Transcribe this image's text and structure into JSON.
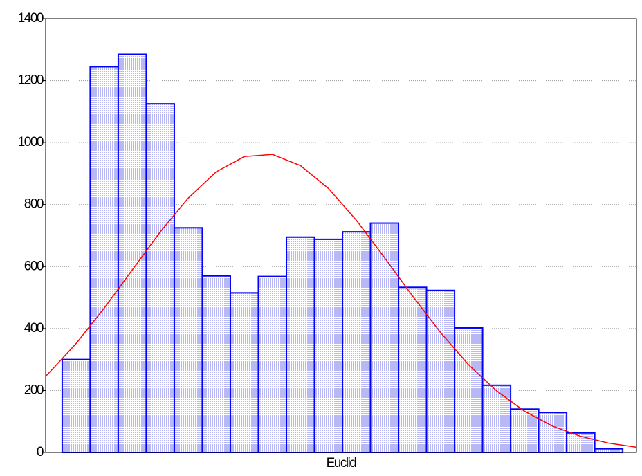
{
  "chart_data": {
    "type": "histogram",
    "x_label": "Euclid",
    "bins": [
      0,
      1,
      2,
      3,
      4,
      5,
      6,
      7,
      8,
      9,
      10,
      11,
      12,
      13,
      14,
      15,
      16,
      17,
      18,
      19,
      20
    ],
    "values": [
      300,
      1245,
      1285,
      1125,
      725,
      570,
      515,
      568,
      695,
      688,
      712,
      740,
      533,
      523,
      402,
      217,
      140,
      129,
      63,
      12
    ],
    "color": "#0000ff",
    "fill": "#b8b8f4",
    "curve": {
      "color": "#ff0000",
      "x": [
        -0.59,
        -0.5,
        0.5,
        1.5,
        2.5,
        3.5,
        4.5,
        5.5,
        6.5,
        7.5,
        8.5,
        9.5,
        10.5,
        11.5,
        12.5,
        13.5,
        14.5,
        15.5,
        16.5,
        17.5,
        18.5,
        19.5,
        20.49
      ],
      "values": [
        246,
        254,
        352,
        466,
        589,
        712,
        821,
        906,
        955,
        962,
        926,
        852,
        749,
        629,
        505,
        387,
        283,
        199,
        133,
        85,
        52,
        30,
        17
      ]
    },
    "xlim": [
      -0.59,
      20.49
    ],
    "ylim": [
      0,
      1400
    ],
    "yticks": [
      0,
      200,
      400,
      600,
      800,
      1000,
      1200,
      1400
    ],
    "grid": true
  }
}
